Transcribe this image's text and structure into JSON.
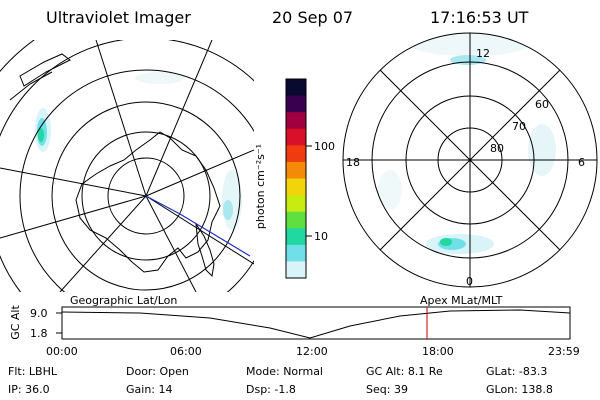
{
  "header": {
    "instrument": "Ultraviolet Imager",
    "date": "20 Sep 07",
    "time": "17:16:53 UT"
  },
  "left_map": {
    "caption": "Geographic Lat/Lon"
  },
  "right_map": {
    "caption": "Apex  MLat/MLT",
    "mlt_labels": {
      "top": "12",
      "bottom": "0",
      "left": "18",
      "right": "6"
    },
    "lat_labels": [
      "60",
      "70",
      "80"
    ]
  },
  "colorbar": {
    "unit_label": "photon cm⁻²s⁻¹",
    "ticks": [
      "100",
      "10"
    ],
    "colors": [
      "#0a0a30",
      "#3a0050",
      "#a00040",
      "#d8102a",
      "#f03a10",
      "#f48a08",
      "#f2d40a",
      "#c8ec10",
      "#60e040",
      "#20d8a0",
      "#70e0e8",
      "#d8f4f8"
    ]
  },
  "altitude_plot": {
    "ylabel": "GC Alt",
    "y_ticks": [
      "9.0",
      "1.8"
    ],
    "x_ticks": [
      "00:00",
      "06:00",
      "12:00",
      "18:00",
      "23:59"
    ],
    "current_time_marker_color": "#c00000"
  },
  "status": {
    "row1": [
      {
        "label": "Flt:",
        "value": "LBHL"
      },
      {
        "label": "Door:",
        "value": "Open"
      },
      {
        "label": "Mode:",
        "value": "Normal"
      },
      {
        "label": "GC Alt:",
        "value": "8.1 Re"
      },
      {
        "label": "GLat:",
        "value": "-83.3"
      }
    ],
    "row2": [
      {
        "label": "IP:",
        "value": "36.0"
      },
      {
        "label": "Gain:",
        "value": "14"
      },
      {
        "label": "Dsp:",
        "value": "-1.8"
      },
      {
        "label": "Seq:",
        "value": "39"
      },
      {
        "label": "GLon:",
        "value": "138.8"
      }
    ]
  }
}
